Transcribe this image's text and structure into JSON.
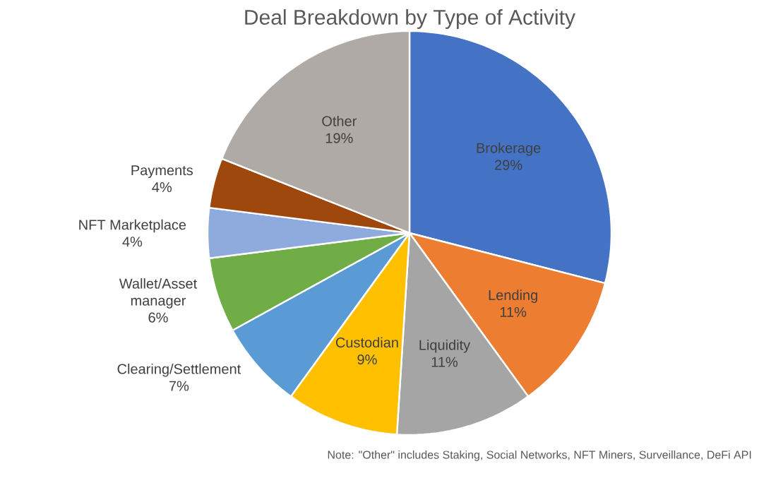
{
  "chart_data": {
    "type": "pie",
    "title": "Deal Breakdown by Type of Activity",
    "categories": [
      "Brokerage",
      "Lending",
      "Liquidity",
      "Custodian",
      "Clearing/Settlement",
      "Wallet/Asset manager",
      "NFT Marketplace",
      "Payments",
      "Other"
    ],
    "values": [
      29,
      11,
      11,
      9,
      7,
      6,
      4,
      4,
      19
    ],
    "value_labels": [
      "29%",
      "11%",
      "11%",
      "9%",
      "7%",
      "6%",
      "4%",
      "4%",
      "19%"
    ],
    "colors": [
      "#4472c4",
      "#ed7d31",
      "#a5a5a5",
      "#ffc000",
      "#5b9bd5",
      "#70ad47",
      "#8faadc",
      "#9e480e",
      "#b0aaa6"
    ],
    "annotations": [
      "Note: \"Other\" includes Staking, Social Networks, NFT Miners, Surveillance, DeFi API"
    ]
  }
}
